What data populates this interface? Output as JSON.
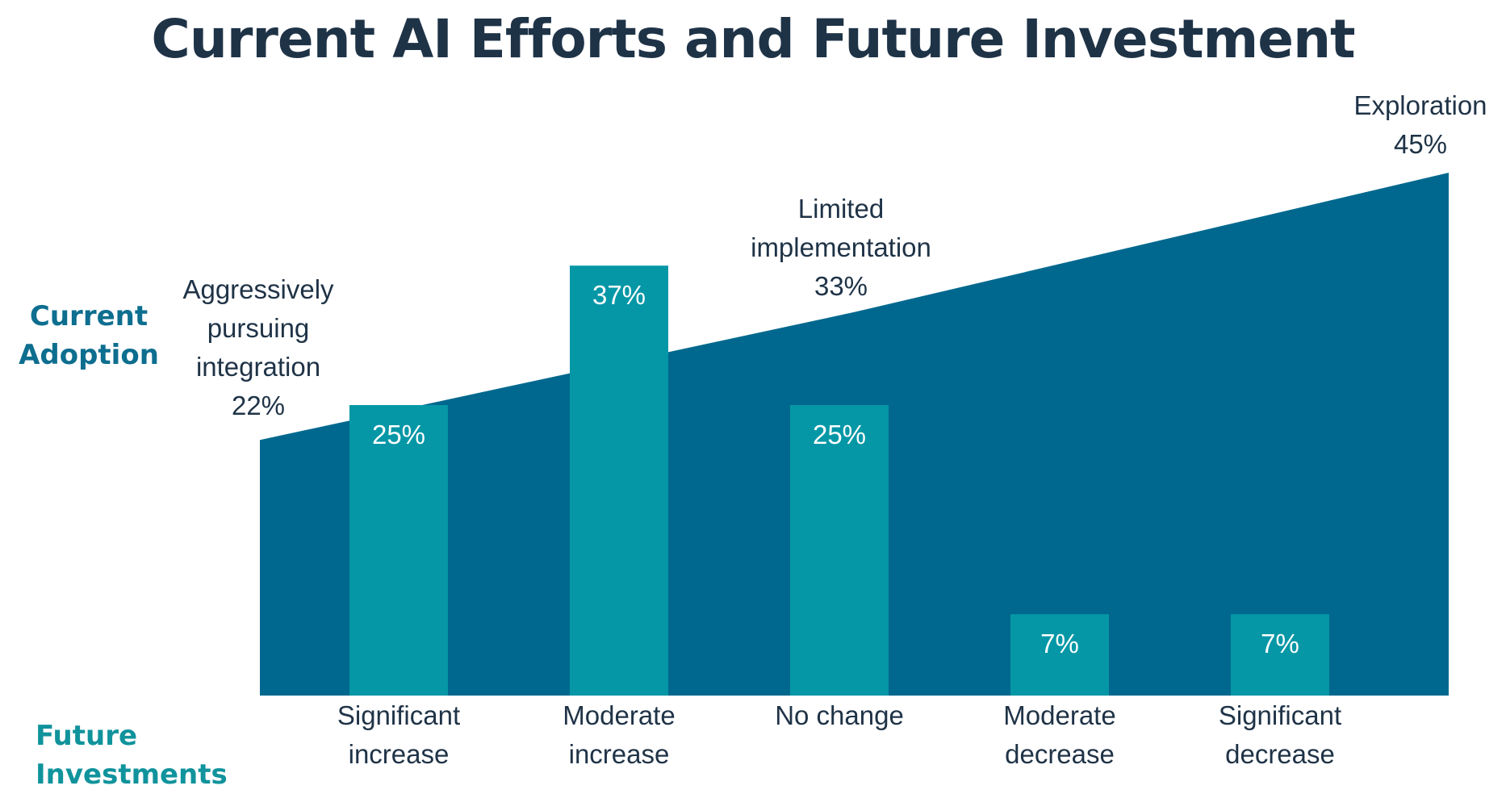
{
  "chart_data": {
    "type": "bar",
    "title": "Current AI Efforts and Future Investment",
    "ylabel": "Current Adoption",
    "xlabel": "Future Investments",
    "ylim": [
      0,
      45
    ],
    "colors": {
      "area": "#00688e",
      "bars": "#0597a6",
      "bar_labels": "#ffffff",
      "text": "#1f3347"
    },
    "area_series": {
      "name": "Current Adoption",
      "points": [
        {
          "label": "Aggressively pursuing integration",
          "value": 22,
          "value_label": "22%"
        },
        {
          "label": "Limited implementation",
          "value": 33,
          "value_label": "33%"
        },
        {
          "label": "Exploration",
          "value": 45,
          "value_label": "45%"
        }
      ]
    },
    "bar_series": {
      "name": "Future Investments",
      "categories": [
        "Significant increase",
        "Moderate increase",
        "No change",
        "Moderate decrease",
        "Significant decrease"
      ],
      "values": [
        25,
        37,
        25,
        7,
        7
      ],
      "value_labels": [
        "25%",
        "37%",
        "25%",
        "7%",
        "7%"
      ]
    }
  }
}
